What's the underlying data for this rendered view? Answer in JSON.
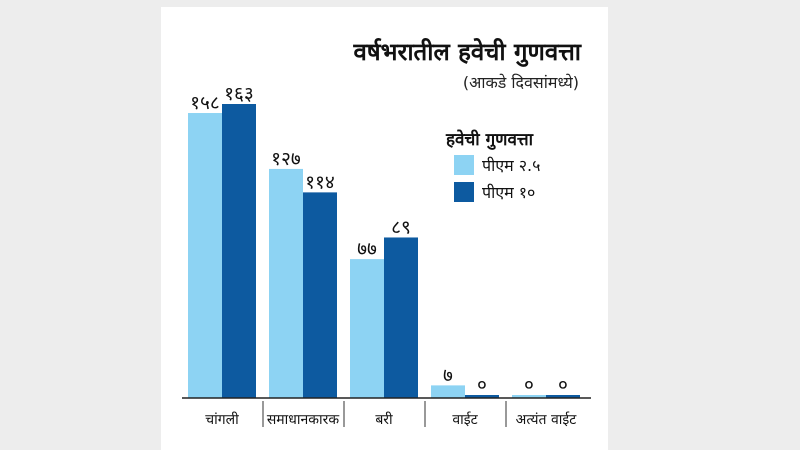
{
  "chart_data": {
    "type": "bar",
    "title": "वर्षभरातील हवेची गुणवत्ता",
    "subtitle": "(आकडे दिवसांमध्ये)",
    "legend_title": "हवेची गुणवत्ता",
    "categories": [
      "चांगली",
      "समाधानकारक",
      "बरी",
      "वाईट",
      "अत्यंत वाईट"
    ],
    "series": [
      {
        "name": "पीएम २.५",
        "color": "#8dd3f3",
        "values": [
          158,
          127,
          77,
          7,
          0
        ],
        "value_labels": [
          "१५८",
          "१२७",
          "७७",
          "७",
          "०"
        ]
      },
      {
        "name": "पीएम १०",
        "color": "#0d5aa0",
        "values": [
          163,
          114,
          89,
          0,
          0
        ],
        "value_labels": [
          "१६३",
          "११४",
          "८९",
          "०",
          "०"
        ]
      }
    ],
    "ylim": [
      0,
      163
    ],
    "grid": false,
    "legend_position": "top-right"
  }
}
